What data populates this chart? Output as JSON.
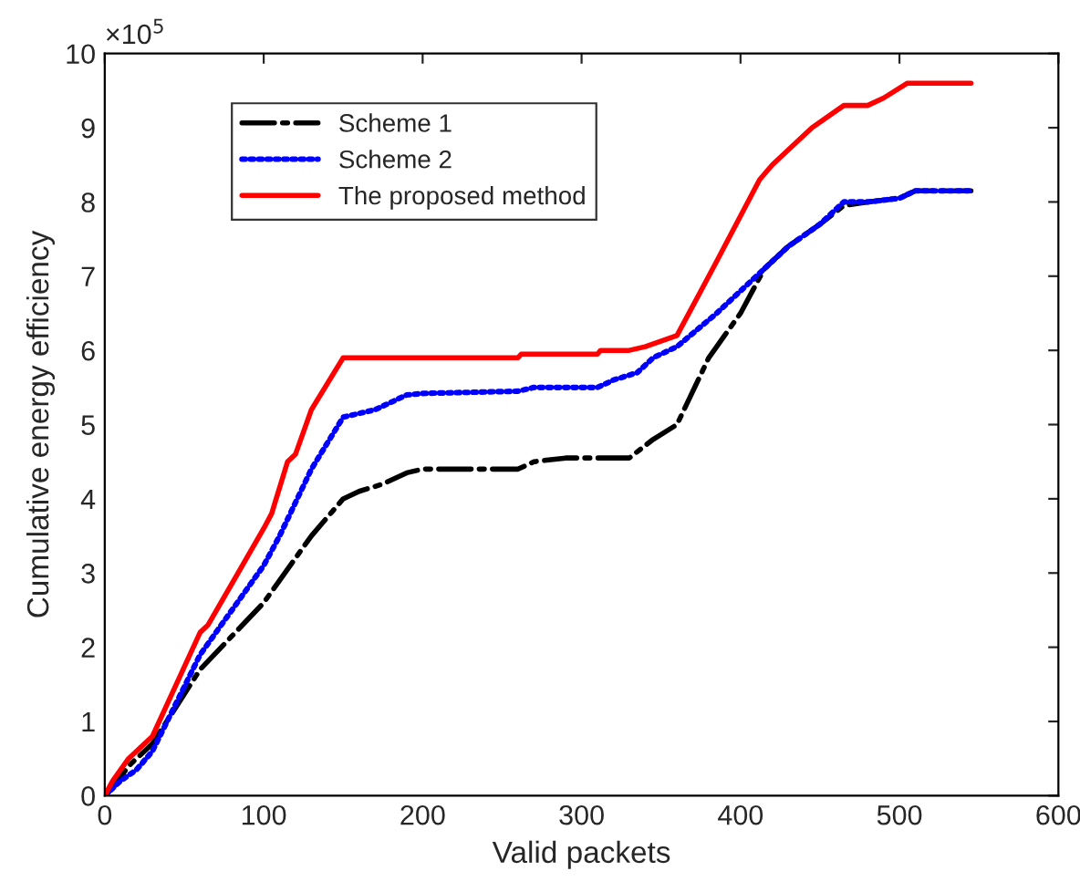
{
  "chart_data": {
    "type": "line",
    "xlabel": "Valid packets",
    "ylabel": "Cumulative energy efficiency",
    "annotations": [
      "×10$^{5}$"
    ],
    "xlim": [
      0,
      600
    ],
    "xticks": [
      0,
      100,
      200,
      300,
      400,
      500,
      600
    ],
    "ylim": [
      0,
      10
    ],
    "yticks": [
      0,
      1,
      2,
      3,
      4,
      5,
      6,
      7,
      8,
      9,
      10
    ],
    "grid": false,
    "legend": "top left",
    "series": [
      {
        "name": "Scheme 1",
        "color": "#000000",
        "line_style": "dashdot",
        "x": [
          0,
          5,
          15,
          30,
          60,
          100,
          110,
          130,
          150,
          160,
          175,
          190,
          200,
          260,
          270,
          290,
          330,
          345,
          360,
          380,
          400,
          415,
          430,
          450,
          465,
          480,
          500,
          510,
          545
        ],
        "values": [
          0,
          0.1,
          0.4,
          0.7,
          1.7,
          2.6,
          2.9,
          3.5,
          4.0,
          4.1,
          4.2,
          4.35,
          4.4,
          4.4,
          4.5,
          4.55,
          4.55,
          4.8,
          5.0,
          5.9,
          6.5,
          7.1,
          7.4,
          7.7,
          7.95,
          8.0,
          8.05,
          8.15,
          8.15
        ]
      },
      {
        "name": "Scheme 2",
        "color": "#0000ff",
        "line_style": "dotted",
        "x": [
          0,
          10,
          20,
          30,
          60,
          100,
          110,
          130,
          150,
          160,
          170,
          190,
          200,
          260,
          270,
          310,
          320,
          335,
          345,
          360,
          385,
          410,
          430,
          450,
          465,
          480,
          500,
          510,
          545
        ],
        "values": [
          0,
          0.2,
          0.35,
          0.6,
          1.9,
          3.1,
          3.5,
          4.4,
          5.1,
          5.15,
          5.2,
          5.4,
          5.42,
          5.45,
          5.5,
          5.5,
          5.6,
          5.7,
          5.9,
          6.05,
          6.5,
          7.0,
          7.4,
          7.7,
          8.0,
          8.0,
          8.05,
          8.15,
          8.15
        ]
      },
      {
        "name": "The proposed method",
        "color": "#ff0000",
        "line_style": "solid",
        "x": [
          0,
          5,
          15,
          30,
          60,
          65,
          100,
          105,
          115,
          120,
          130,
          150,
          260,
          262,
          310,
          312,
          330,
          340,
          360,
          385,
          412,
          420,
          435,
          445,
          465,
          480,
          490,
          505,
          545
        ],
        "values": [
          0,
          0.2,
          0.5,
          0.8,
          2.2,
          2.3,
          3.6,
          3.8,
          4.5,
          4.6,
          5.2,
          5.9,
          5.9,
          5.95,
          5.95,
          6.0,
          6.0,
          6.05,
          6.2,
          7.2,
          8.3,
          8.5,
          8.8,
          9.0,
          9.3,
          9.3,
          9.4,
          9.6,
          9.6
        ]
      }
    ]
  }
}
